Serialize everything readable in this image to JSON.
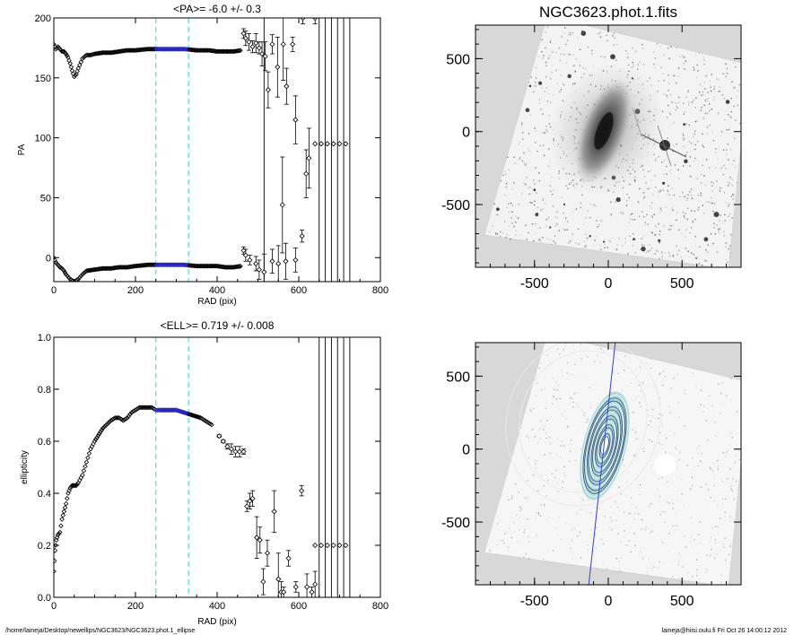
{
  "chart_data": [
    {
      "id": "pa",
      "type": "scatter",
      "title": "<PA>=  -6.0 +/-   0.3",
      "xlabel": "RAD (pix)",
      "ylabel": "PA",
      "xlim": [
        0,
        800
      ],
      "ylim": [
        -20,
        200
      ],
      "xticks": [
        "0",
        "200",
        "400",
        "600",
        "800"
      ],
      "yticks": [
        "0",
        "50",
        "100",
        "150",
        "200"
      ],
      "fit_range": [
        250,
        330
      ],
      "curves": [
        {
          "name": "upper",
          "x": [
            0,
            5,
            10,
            15,
            20,
            25,
            30,
            35,
            40,
            45,
            50,
            55,
            60,
            70,
            80,
            90,
            100,
            120,
            140,
            160,
            180,
            200,
            230,
            260,
            290,
            320,
            350,
            380,
            400,
            420,
            440,
            460
          ],
          "y": [
            178,
            174,
            176,
            174,
            172,
            172,
            170,
            167,
            162,
            156,
            151,
            153,
            158,
            166,
            169,
            169,
            170,
            171,
            171,
            172,
            173,
            173,
            174,
            174,
            174,
            174,
            173,
            173,
            172,
            172,
            172,
            173
          ]
        },
        {
          "name": "lower",
          "x": [
            0,
            5,
            10,
            15,
            20,
            25,
            30,
            40,
            50,
            60,
            70,
            80,
            100,
            120,
            140,
            160,
            180,
            200,
            230,
            260,
            290,
            320,
            350,
            380,
            400,
            420,
            440,
            460
          ],
          "y": [
            0,
            -4,
            -6,
            -8,
            -9,
            -11,
            -14,
            -18,
            -20,
            -18,
            -14,
            -11,
            -10,
            -9,
            -9,
            -8,
            -8,
            -7,
            -6,
            -6,
            -6,
            -6,
            -7,
            -7,
            -7,
            -8,
            -8,
            -7
          ]
        }
      ],
      "errpoints": [
        {
          "x": 465,
          "y": 187,
          "e": 4
        },
        {
          "x": 470,
          "y": 183,
          "e": 6
        },
        {
          "x": 478,
          "y": 180,
          "e": 7
        },
        {
          "x": 487,
          "y": 176,
          "e": 5
        },
        {
          "x": 495,
          "y": 179,
          "e": 8
        },
        {
          "x": 503,
          "y": 175,
          "e": 5
        },
        {
          "x": 510,
          "y": 170,
          "e": 10
        },
        {
          "x": 518,
          "y": 168,
          "e": 12
        },
        {
          "x": 525,
          "y": 140,
          "e": 15
        },
        {
          "x": 535,
          "y": 178,
          "e": 8
        },
        {
          "x": 548,
          "y": 159,
          "e": 25
        },
        {
          "x": 562,
          "y": 178,
          "e": 30
        },
        {
          "x": 570,
          "y": 143,
          "e": 15
        },
        {
          "x": 585,
          "y": 178,
          "e": 6
        },
        {
          "x": 592,
          "y": 115,
          "e": 20
        },
        {
          "x": 610,
          "y": 200,
          "e": 5
        },
        {
          "x": 618,
          "y": 70,
          "e": 20
        },
        {
          "x": 625,
          "y": 83,
          "e": 25
        },
        {
          "x": 640,
          "y": 200,
          "e": 5
        },
        {
          "x": 465,
          "y": 6,
          "e": 3
        },
        {
          "x": 470,
          "y": 2,
          "e": 5
        },
        {
          "x": 480,
          "y": -2,
          "e": 4
        },
        {
          "x": 495,
          "y": -5,
          "e": 6
        },
        {
          "x": 503,
          "y": -10,
          "e": 8
        },
        {
          "x": 515,
          "y": -12,
          "e": 15
        },
        {
          "x": 535,
          "y": -3,
          "e": 10
        },
        {
          "x": 550,
          "y": -5,
          "e": 15
        },
        {
          "x": 560,
          "y": 44,
          "e": 40
        },
        {
          "x": 568,
          "y": -3,
          "e": 15
        },
        {
          "x": 592,
          "y": -2,
          "e": 10
        },
        {
          "x": 608,
          "y": 18,
          "e": 5
        }
      ],
      "flatpoints": {
        "x": [
          640,
          655,
          670,
          685,
          700,
          715
        ],
        "y": 95
      },
      "vlines": [
        515,
        650,
        665,
        680,
        695,
        710,
        725
      ]
    },
    {
      "id": "ell",
      "type": "scatter",
      "title": "<ELL>= 0.719 +/-  0.008",
      "xlabel": "RAD (pix)",
      "ylabel": "ellipticity",
      "xlim": [
        0,
        800
      ],
      "ylim": [
        0.0,
        1.0
      ],
      "xticks": [
        "0",
        "200",
        "400",
        "600",
        "800"
      ],
      "yticks": [
        "0.0",
        "0.2",
        "0.4",
        "0.6",
        "0.8",
        "1.0"
      ],
      "fit_range": [
        250,
        330
      ],
      "curves": [
        {
          "name": "ellipticity",
          "x": [
            0,
            3,
            6,
            10,
            15,
            20,
            25,
            30,
            35,
            40,
            45,
            50,
            55,
            60,
            70,
            80,
            90,
            100,
            120,
            140,
            150,
            160,
            170,
            180,
            190,
            200,
            210,
            220,
            230,
            240,
            250,
            260,
            280,
            300,
            320,
            340,
            360,
            370,
            380,
            390
          ],
          "y": [
            0.1,
            0.18,
            0.22,
            0.24,
            0.25,
            0.3,
            0.33,
            0.36,
            0.4,
            0.42,
            0.43,
            0.43,
            0.43,
            0.44,
            0.47,
            0.52,
            0.57,
            0.6,
            0.65,
            0.68,
            0.69,
            0.69,
            0.68,
            0.69,
            0.71,
            0.72,
            0.73,
            0.73,
            0.73,
            0.73,
            0.72,
            0.72,
            0.72,
            0.72,
            0.71,
            0.7,
            0.69,
            0.68,
            0.67,
            0.66
          ]
        }
      ],
      "errpoints": [
        {
          "x": 405,
          "y": 0.62,
          "e": 0.005
        },
        {
          "x": 415,
          "y": 0.6,
          "e": 0.005
        },
        {
          "x": 425,
          "y": 0.58,
          "e": 0.01
        },
        {
          "x": 435,
          "y": 0.57,
          "e": 0.02
        },
        {
          "x": 445,
          "y": 0.56,
          "e": 0.02
        },
        {
          "x": 455,
          "y": 0.56,
          "e": 0.02
        },
        {
          "x": 465,
          "y": 0.56,
          "e": 0.01
        },
        {
          "x": 473,
          "y": 0.35,
          "e": 0.02
        },
        {
          "x": 480,
          "y": 0.37,
          "e": 0.03
        },
        {
          "x": 487,
          "y": 0.38,
          "e": 0.03
        },
        {
          "x": 497,
          "y": 0.23,
          "e": 0.08
        },
        {
          "x": 505,
          "y": 0.22,
          "e": 0.05
        },
        {
          "x": 513,
          "y": 0.06,
          "e": 0.05
        },
        {
          "x": 523,
          "y": 0.17,
          "e": 0.05
        },
        {
          "x": 540,
          "y": 0.33,
          "e": 0.08
        },
        {
          "x": 550,
          "y": 0.07,
          "e": 0.1
        },
        {
          "x": 557,
          "y": 0.02,
          "e": 0.04
        },
        {
          "x": 563,
          "y": 0.02,
          "e": 0.02
        },
        {
          "x": 575,
          "y": 0.15,
          "e": 0.03
        },
        {
          "x": 593,
          "y": 0.04,
          "e": 0.02
        },
        {
          "x": 607,
          "y": 0.41,
          "e": 0.02
        },
        {
          "x": 620,
          "y": 0.04,
          "e": 0.05
        },
        {
          "x": 632,
          "y": 0.02,
          "e": 0.02
        },
        {
          "x": 640,
          "y": 0.05,
          "e": 0.05
        }
      ],
      "flatpoints": {
        "x": [
          640,
          655,
          670,
          685,
          700,
          715
        ],
        "y": 0.2
      },
      "vlines": [
        650,
        665,
        680,
        695,
        710,
        725
      ]
    }
  ],
  "images": {
    "title": "NGC3623.phot.1.fits",
    "xlim": [
      -900,
      900
    ],
    "ylim": [
      -930,
      730
    ],
    "xticks": [
      "-500",
      "0",
      "500"
    ],
    "yticks": [
      "500",
      "0",
      "-500"
    ]
  },
  "footer": {
    "left": "/home/laineja/Desktop/newellips/NGC3623/NGC3623.phot.1_ellipse",
    "right": "laineja@hiisi.oulu.fi  Fri Oct 26 14:00:12 2012"
  },
  "colors": {
    "fit_line": "#55dddd",
    "fit_points": "#2222bb",
    "major_axis": "#3344cc",
    "contour": "#33aaaa",
    "background_gray": "#d4d4d4"
  }
}
